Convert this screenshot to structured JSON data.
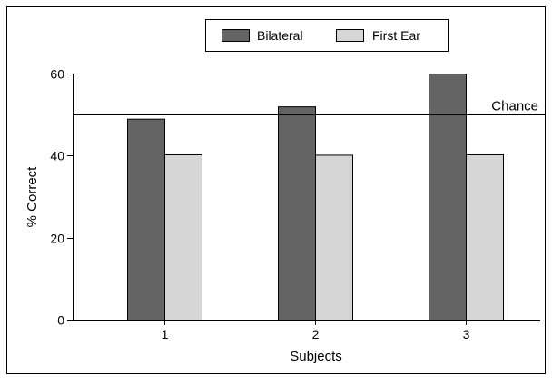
{
  "chart_data": {
    "type": "bar",
    "xlabel": "Subjects",
    "ylabel": "% Correct",
    "categories": [
      "1",
      "2",
      "3"
    ],
    "series": [
      {
        "name": "Bilateral",
        "values": [
          49,
          52,
          60
        ],
        "color": "#646464"
      },
      {
        "name": "First Ear",
        "values": [
          40.3,
          40.2,
          40.3
        ],
        "color": "#d6d6d6"
      }
    ],
    "ylim": [
      0,
      60
    ],
    "yticks": [
      0,
      20,
      40,
      60
    ],
    "reference_line": {
      "label": "Chance",
      "value": 50
    },
    "legend_position": "top-center",
    "grid": false
  }
}
